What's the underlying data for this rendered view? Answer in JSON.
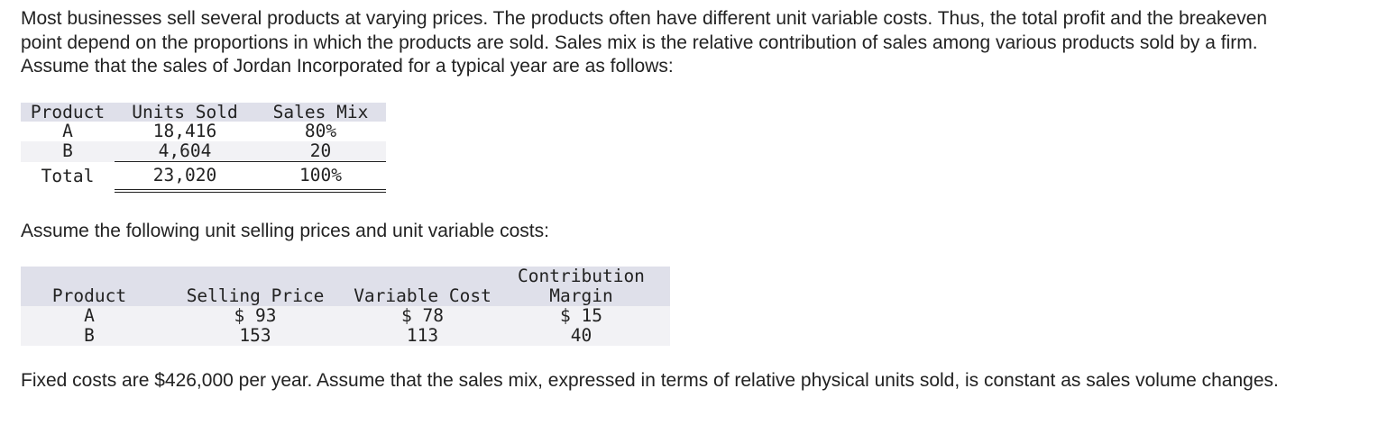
{
  "intro": "Most businesses sell several products at varying prices. The products often have different unit variable costs. Thus, the total profit and the breakeven point depend on the proportions in which the products are sold. Sales mix is the relative contribution of sales among various products sold by a firm. Assume that the sales of Jordan Incorporated for a typical year are as follows:",
  "sales_table": {
    "headers": [
      "Product",
      "Units Sold",
      "Sales Mix"
    ],
    "rows": [
      {
        "product": "A",
        "units": "18,416",
        "mix": "80%"
      },
      {
        "product": "B",
        "units": "4,604",
        "mix": "20"
      }
    ],
    "total": {
      "label": "Total",
      "units": "23,020",
      "mix": "100%"
    }
  },
  "assume_text": "Assume the following unit selling prices and unit variable costs:",
  "cost_table": {
    "headers": [
      "Product",
      "Selling Price",
      "Variable Cost",
      "Contribution",
      "Margin"
    ],
    "rows": [
      {
        "product": "A",
        "price": "$ 93",
        "variable": "$ 78",
        "margin": "$ 15"
      },
      {
        "product": "B",
        "price": "153",
        "variable": "113",
        "margin": "40"
      }
    ]
  },
  "fixed_text": "Fixed costs are $426,000 per year. Assume that the sales mix, expressed in terms of relative physical units sold, is constant as sales volume changes."
}
